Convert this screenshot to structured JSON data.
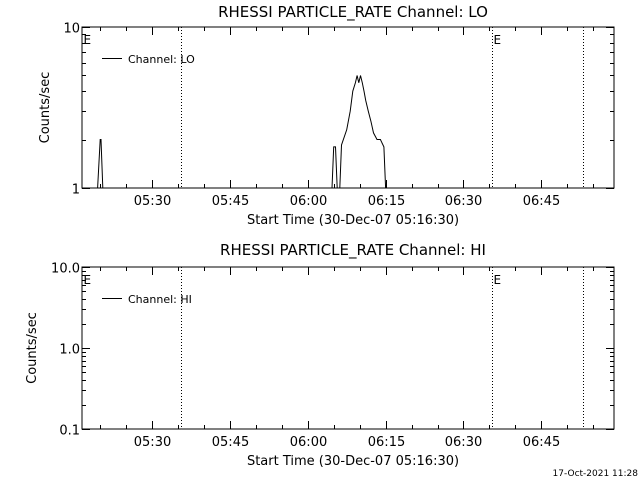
{
  "footer_timestamp": "17-Oct-2021 11:28",
  "chart_data": [
    {
      "type": "line",
      "title": "RHESSI PARTICLE_RATE Channel: LO",
      "xlabel": "Start Time (30-Dec-07 05:16:30)",
      "ylabel": "Counts/sec",
      "yscale": "log",
      "ylim": [
        1,
        10
      ],
      "y_tick_labels": [
        "1",
        "10"
      ],
      "y_tick_values": [
        1,
        10
      ],
      "xlim": [
        "05:16:30",
        "06:59:00"
      ],
      "x_tick_labels": [
        "05:30",
        "05:45",
        "06:00",
        "06:15",
        "06:30",
        "06:45"
      ],
      "x_tick_values": [
        "05:30",
        "05:45",
        "06:00",
        "06:15",
        "06:30",
        "06:45"
      ],
      "legend": {
        "position": "top-left",
        "entry": "Channel: LO"
      },
      "markers": [
        {
          "time": "05:16:30",
          "label": "E"
        },
        {
          "time": "05:35:30",
          "label": ""
        },
        {
          "time": "06:35:30",
          "label": "E"
        },
        {
          "time": "06:53:00",
          "label": ""
        }
      ],
      "series": [
        {
          "name": "Channel: LO",
          "segments": [
            {
              "x": [
                "05:19:30",
                "05:20:00",
                "05:20:10",
                "05:20:30"
              ],
              "y": [
                1,
                2.0,
                2.0,
                1
              ]
            },
            {
              "x": [
                "06:04:40",
                "06:05:00",
                "06:05:20",
                "06:05:40"
              ],
              "y": [
                1,
                1.8,
                1.8,
                1
              ]
            },
            {
              "x": [
                "06:06:10",
                "06:06:30",
                "06:07:30",
                "06:08:10",
                "06:08:40",
                "06:09:10",
                "06:09:30",
                "06:09:50",
                "06:10:10",
                "06:10:30",
                "06:10:50",
                "06:11:10",
                "06:11:40",
                "06:12:10",
                "06:12:40",
                "06:13:20",
                "06:14:00",
                "06:14:40",
                "06:15:00"
              ],
              "y": [
                1,
                1.85,
                2.3,
                3.0,
                4.0,
                4.5,
                5.0,
                4.5,
                5.0,
                4.5,
                4.0,
                3.5,
                3.0,
                2.6,
                2.2,
                2.0,
                2.0,
                1.8,
                1
              ]
            }
          ]
        }
      ]
    },
    {
      "type": "line",
      "title": "RHESSI PARTICLE_RATE Channel: HI",
      "xlabel": "Start Time (30-Dec-07 05:16:30)",
      "ylabel": "Counts/sec",
      "yscale": "log",
      "ylim": [
        0.1,
        10.0
      ],
      "y_tick_labels": [
        "0.1",
        "1.0",
        "10.0"
      ],
      "y_tick_values": [
        0.1,
        1.0,
        10.0
      ],
      "xlim": [
        "05:16:30",
        "06:59:00"
      ],
      "x_tick_labels": [
        "05:30",
        "05:45",
        "06:00",
        "06:15",
        "06:30",
        "06:45"
      ],
      "x_tick_values": [
        "05:30",
        "05:45",
        "06:00",
        "06:15",
        "06:30",
        "06:45"
      ],
      "legend": {
        "position": "top-left",
        "entry": "Channel: HI"
      },
      "markers": [
        {
          "time": "05:16:30",
          "label": "E"
        },
        {
          "time": "05:35:30",
          "label": ""
        },
        {
          "time": "06:35:30",
          "label": "E"
        },
        {
          "time": "06:53:00",
          "label": ""
        }
      ],
      "series": [
        {
          "name": "Channel: HI",
          "segments": []
        }
      ]
    }
  ]
}
